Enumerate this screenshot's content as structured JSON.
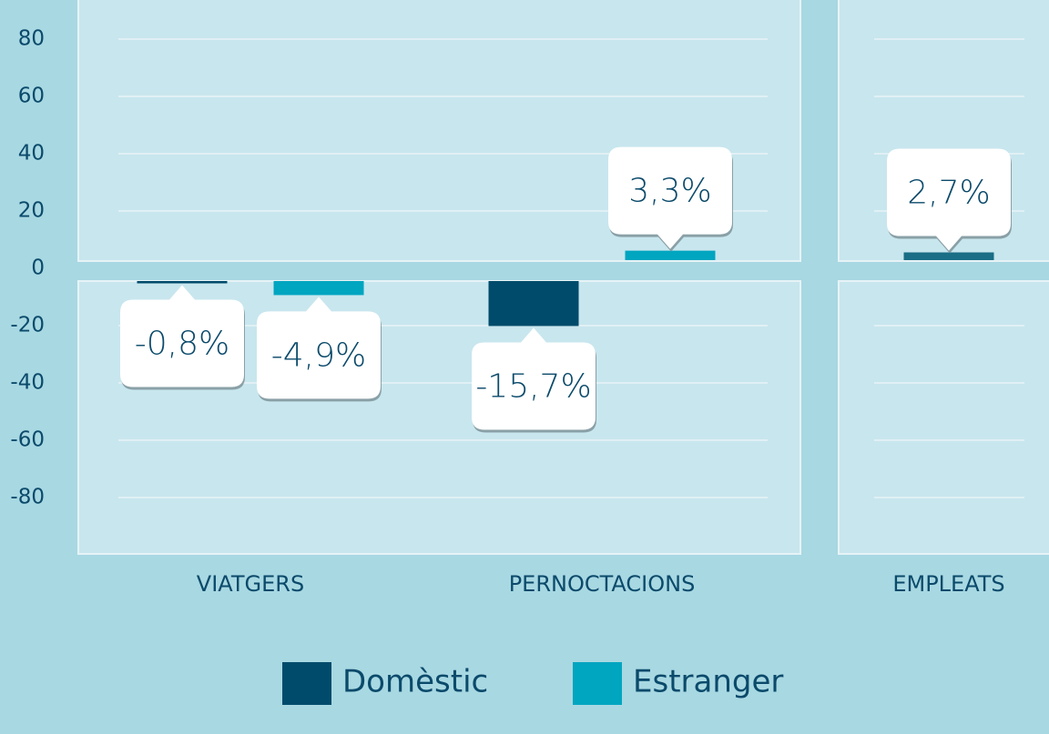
{
  "chart_data": {
    "type": "bar",
    "categories": [
      "VIATGERS",
      "PERNOCTACIONS",
      "EMPLEATS"
    ],
    "series": [
      {
        "name": "Domèstic",
        "color": "#004b6b",
        "colors": [
          "#004b6b",
          "#004b6b",
          "#1a6e85"
        ],
        "values": [
          -0.8,
          -15.7,
          2.7
        ],
        "value_labels": [
          "-0,8%",
          "-15,7%",
          "2,7%"
        ]
      },
      {
        "name": "Estranger",
        "color": "#00a5c0",
        "values": [
          -4.9,
          3.3,
          null
        ],
        "value_labels": [
          "-4,9%",
          "3,3%",
          null
        ]
      }
    ],
    "yticks": [
      80,
      60,
      40,
      20,
      0,
      -20,
      -40,
      -60,
      -80
    ],
    "ylim": [
      -100,
      100
    ],
    "grid": true
  }
}
